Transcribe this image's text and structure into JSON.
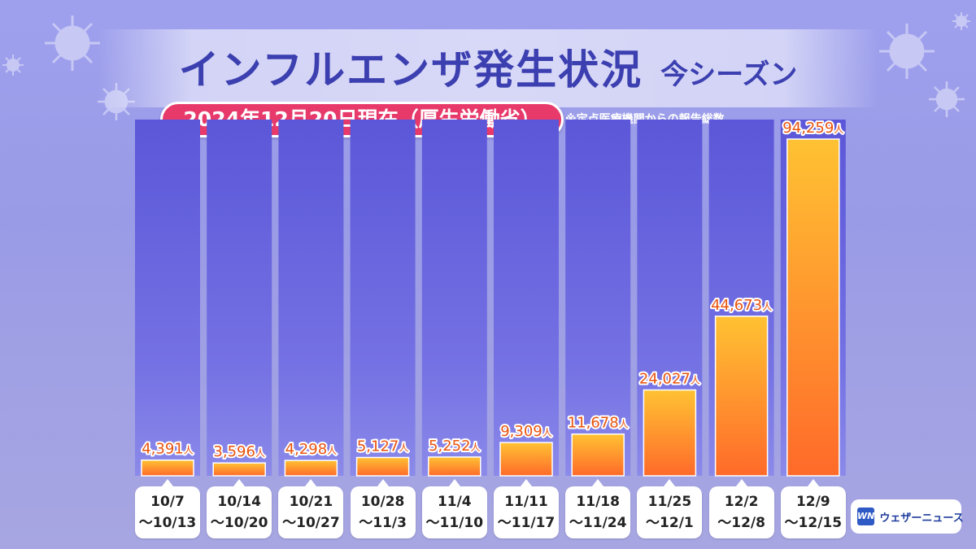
{
  "header": {
    "title": "インフルエンザ発生状況",
    "subtitle": "今シーズン",
    "date_note": "2024年12月20日現在（厚生労働省）",
    "source_note": "※定点医療機関からの報告総数"
  },
  "brand": {
    "logo_mark": "WN",
    "name": "ウェザーニュース"
  },
  "colors": {
    "bar_top": "#ffc233",
    "bar_bottom": "#ff6a2a",
    "column_top": "#5b57d8",
    "column_mid": "#7a78e6",
    "value_label": "#e8540e",
    "title": "#3c3fb0",
    "date_pill": "#e73a6b"
  },
  "chart_data": {
    "type": "bar",
    "categories": [
      [
        "10/7",
        "〜10/13"
      ],
      [
        "10/14",
        "〜10/20"
      ],
      [
        "10/21",
        "〜10/27"
      ],
      [
        "10/28",
        "〜11/3"
      ],
      [
        "11/4",
        "〜11/10"
      ],
      [
        "11/11",
        "〜11/17"
      ],
      [
        "11/18",
        "〜11/24"
      ],
      [
        "11/25",
        "〜12/1"
      ],
      [
        "12/2",
        "〜12/8"
      ],
      [
        "12/9",
        "〜12/15"
      ]
    ],
    "values": [
      4391,
      3596,
      4298,
      5127,
      5252,
      9309,
      11678,
      24027,
      44673,
      94259
    ],
    "value_labels": [
      "4,391",
      "3,596",
      "4,298",
      "5,127",
      "5,252",
      "9,309",
      "11,678",
      "24,027",
      "44,673",
      "94,259"
    ],
    "unit": "人",
    "ylim": [
      0,
      94259
    ],
    "grid": false,
    "legend": "none"
  }
}
